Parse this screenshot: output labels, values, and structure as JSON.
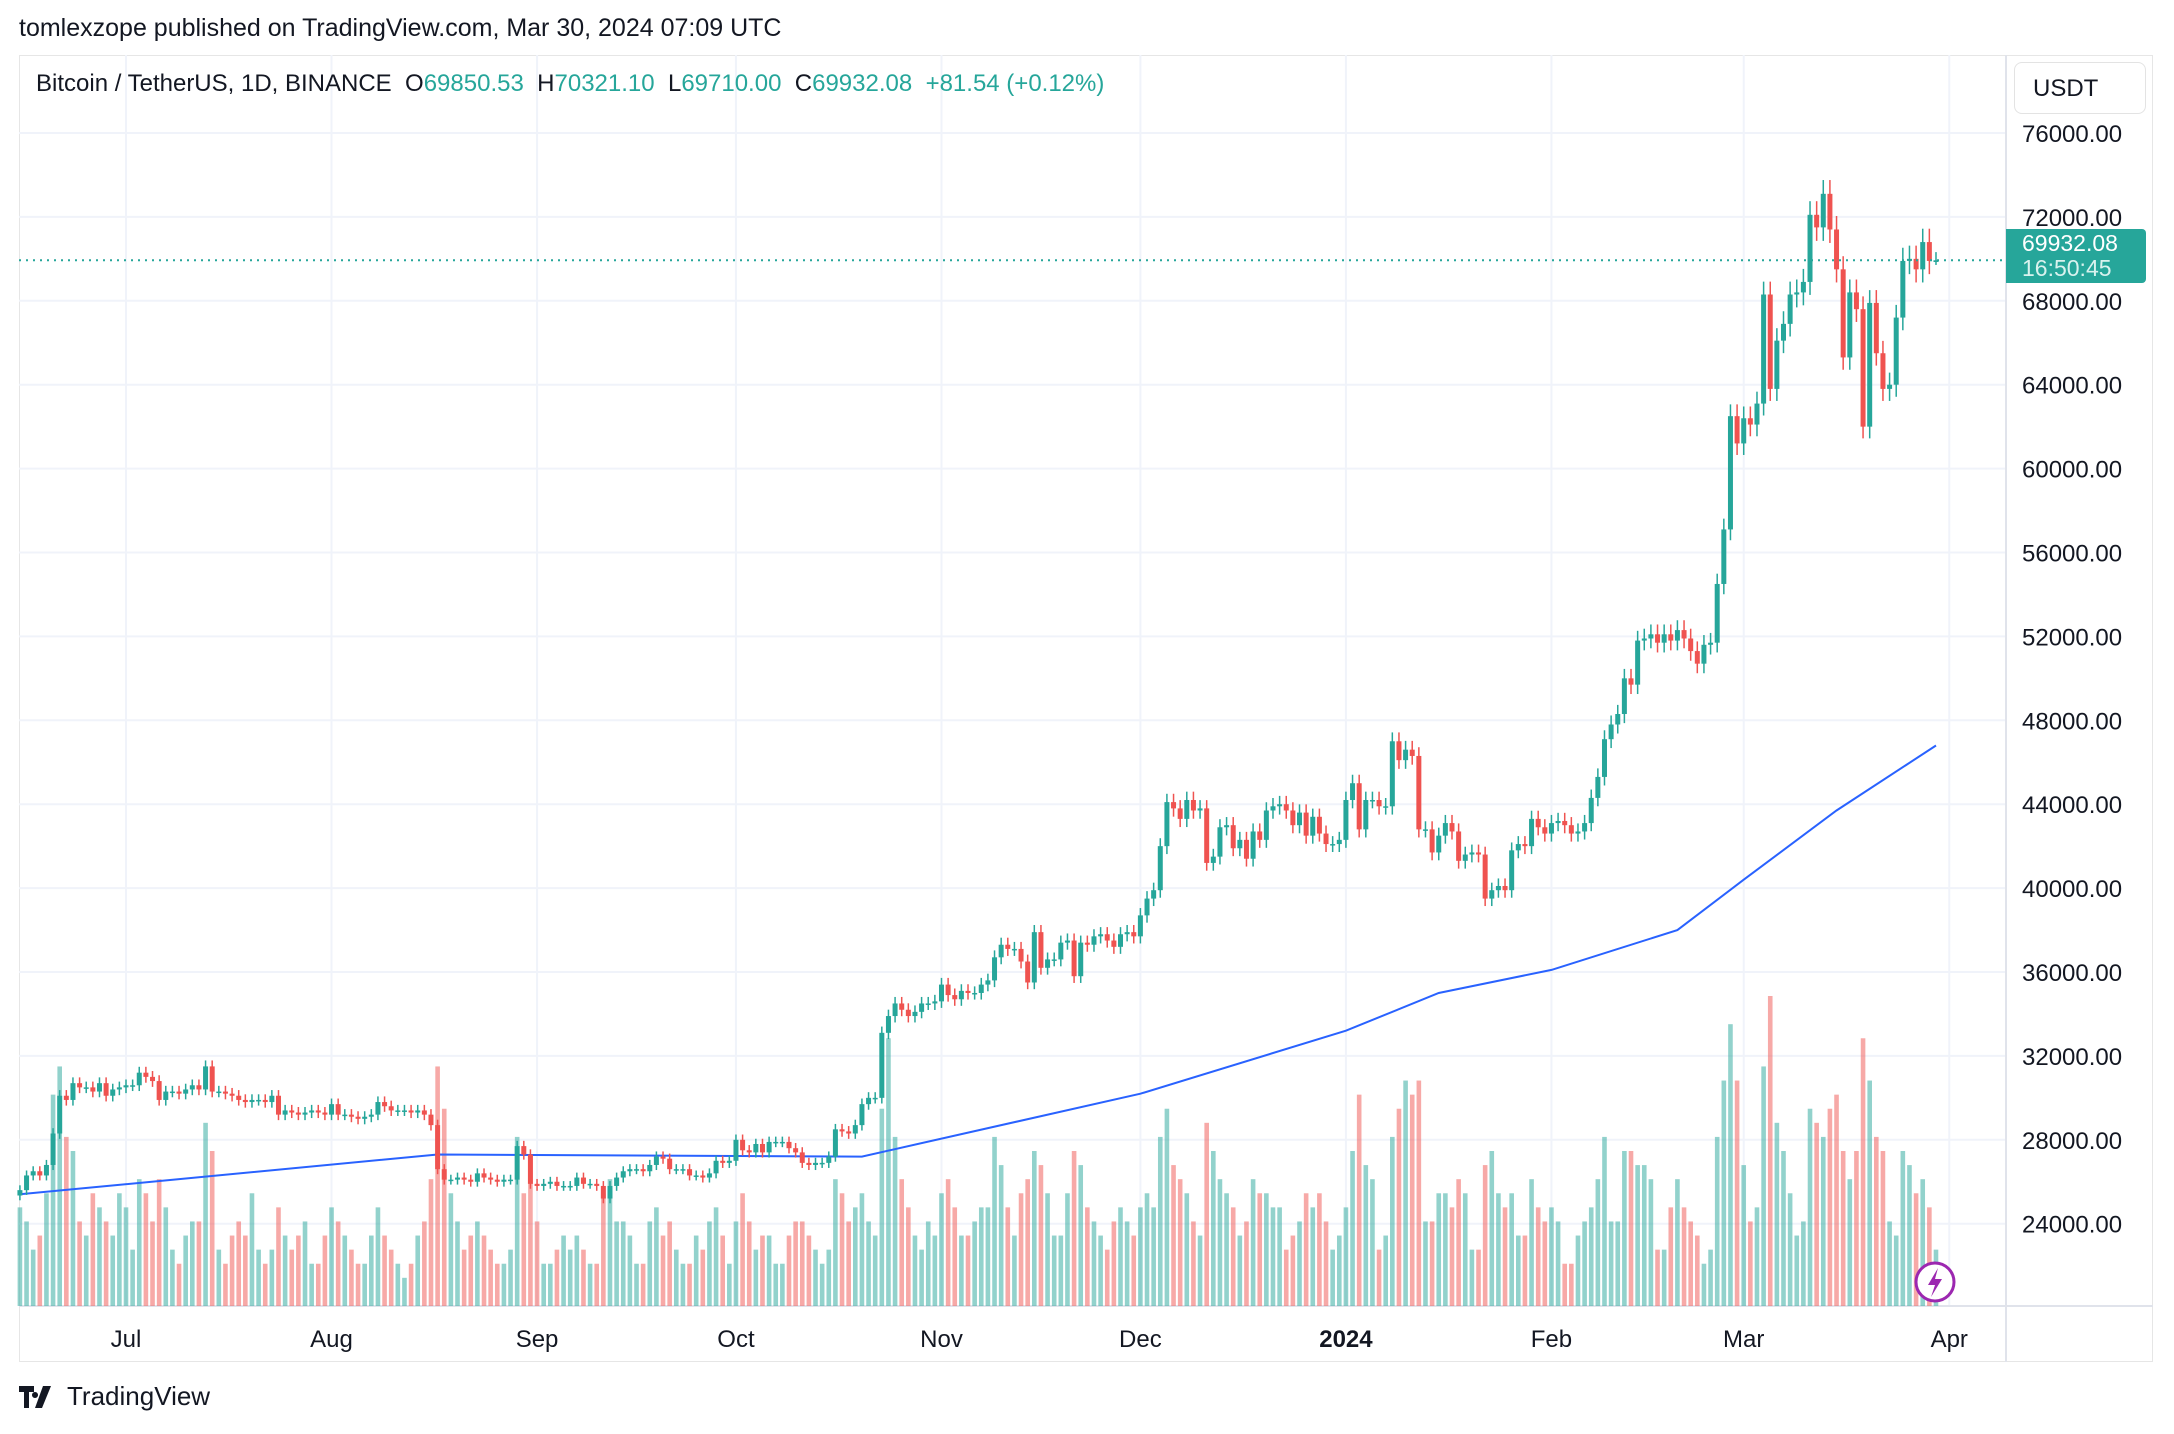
{
  "published": "tomlexzope published on TradingView.com, Mar 30, 2024 07:09 UTC",
  "legend": {
    "symbol": "Bitcoin / TetherUS, 1D, BINANCE",
    "o_label": "O",
    "open": "69850.53",
    "h_label": "H",
    "high": "70321.10",
    "l_label": "L",
    "low": "69710.00",
    "c_label": "C",
    "close": "69932.08",
    "change": "+81.54 (+0.12%)"
  },
  "currency_button": "USDT",
  "last_price": {
    "price": "69932.08",
    "countdown": "16:50:45"
  },
  "footer_brand": "TradingView",
  "colors": {
    "up": "#26a69a",
    "down": "#ef5350",
    "ma": "#2962ff",
    "grid": "#f0f3fa",
    "alert": "#9c27b0"
  },
  "chart_data": {
    "type": "candlestick",
    "title": "",
    "y_ticks": [
      "76000.00",
      "72000.00",
      "68000.00",
      "64000.00",
      "60000.00",
      "56000.00",
      "52000.00",
      "48000.00",
      "44000.00",
      "40000.00",
      "36000.00",
      "32000.00",
      "28000.00",
      "24000.00"
    ],
    "ylim": [
      20000,
      78000
    ],
    "x_ticks": [
      {
        "label": "Jul",
        "date": "2023-07-01",
        "bold": false
      },
      {
        "label": "Aug",
        "date": "2023-08-01",
        "bold": false
      },
      {
        "label": "Sep",
        "date": "2023-09-01",
        "bold": false
      },
      {
        "label": "Oct",
        "date": "2023-10-01",
        "bold": false
      },
      {
        "label": "Nov",
        "date": "2023-11-01",
        "bold": false
      },
      {
        "label": "Dec",
        "date": "2023-12-01",
        "bold": false
      },
      {
        "label": "2024",
        "date": "2024-01-01",
        "bold": true
      },
      {
        "label": "Feb",
        "date": "2024-02-01",
        "bold": false
      },
      {
        "label": "Mar",
        "date": "2024-03-01",
        "bold": false
      },
      {
        "label": "Apr",
        "date": "2024-04-01",
        "bold": false
      }
    ],
    "grid": true,
    "last_candle": {
      "open": 69850.53,
      "high": 70321.1,
      "low": 69710.0,
      "close": 69932.08
    },
    "daily_close_thousands": [
      {
        "month": "2023-06",
        "first_day": 15,
        "close": [
          25.6,
          26.3,
          26.5,
          26.3,
          26.8,
          28.3,
          30.1,
          29.9,
          30.7,
          30.5,
          30.5,
          30.3,
          30.7,
          30.1,
          30.4,
          30.5
        ],
        "volume": [
          35,
          30,
          20,
          25,
          40,
          75,
          85,
          60,
          55,
          30,
          25,
          40,
          35,
          30,
          25,
          40
        ]
      },
      {
        "month": "2023-07",
        "first_day": 1,
        "close": [
          30.6,
          30.6,
          31.2,
          31.0,
          30.8,
          29.9,
          30.3,
          30.3,
          30.2,
          30.4,
          30.6,
          30.4,
          31.5,
          30.3,
          30.3,
          30.2,
          30.1,
          29.9,
          29.8,
          29.9,
          29.9,
          29.8,
          30.1,
          29.2,
          29.4,
          29.3,
          29.2,
          29.3,
          29.4,
          29.3,
          29.2
        ],
        "volume": [
          35,
          20,
          45,
          40,
          30,
          45,
          35,
          20,
          15,
          25,
          30,
          30,
          65,
          55,
          20,
          15,
          25,
          30,
          25,
          40,
          20,
          15,
          20,
          35,
          25,
          20,
          25,
          30,
          15,
          15,
          25
        ]
      },
      {
        "month": "2023-08",
        "first_day": 1,
        "close": [
          29.7,
          29.2,
          29.2,
          29.1,
          29.0,
          29.1,
          29.2,
          29.8,
          29.6,
          29.4,
          29.4,
          29.4,
          29.3,
          29.4,
          29.2,
          28.7,
          26.6,
          26.1,
          26.1,
          26.2,
          26.1,
          26.0,
          26.4,
          26.2,
          26.1,
          26.0,
          26.1,
          26.1,
          27.7,
          27.3,
          25.9
        ],
        "volume": [
          35,
          30,
          25,
          20,
          15,
          15,
          25,
          35,
          25,
          20,
          15,
          10,
          15,
          25,
          30,
          45,
          85,
          70,
          40,
          30,
          20,
          25,
          30,
          25,
          20,
          15,
          15,
          20,
          60,
          40,
          45
        ]
      },
      {
        "month": "2023-09",
        "first_day": 1,
        "close": [
          25.8,
          25.9,
          26.0,
          25.8,
          25.8,
          25.8,
          26.2,
          25.9,
          25.9,
          25.8,
          25.2,
          25.8,
          26.2,
          26.5,
          26.6,
          26.6,
          26.5,
          26.8,
          27.2,
          27.1,
          26.6,
          26.6,
          26.6,
          26.3,
          26.3,
          26.2,
          26.4,
          27.0,
          26.9,
          27.0
        ],
        "volume": [
          30,
          15,
          15,
          20,
          25,
          20,
          25,
          20,
          15,
          15,
          40,
          45,
          30,
          30,
          25,
          15,
          15,
          30,
          35,
          25,
          30,
          20,
          15,
          15,
          25,
          20,
          30,
          35,
          25,
          15
        ]
      },
      {
        "month": "2023-10",
        "first_day": 1,
        "close": [
          28.0,
          27.5,
          27.4,
          27.8,
          27.4,
          27.9,
          27.9,
          27.9,
          27.6,
          27.4,
          26.9,
          26.8,
          26.9,
          26.9,
          27.2,
          28.5,
          28.4,
          28.3,
          28.7,
          29.7,
          30.0,
          30.0,
          33.1,
          33.9,
          34.5,
          34.2,
          33.9,
          34.1,
          34.5,
          34.5,
          34.6
        ],
        "volume": [
          30,
          40,
          30,
          20,
          25,
          25,
          15,
          15,
          25,
          30,
          30,
          25,
          20,
          15,
          20,
          45,
          40,
          30,
          35,
          40,
          30,
          25,
          70,
          95,
          60,
          45,
          35,
          25,
          20,
          30,
          25
        ]
      },
      {
        "month": "2023-11",
        "first_day": 1,
        "close": [
          35.4,
          34.9,
          34.7,
          35.1,
          35.0,
          35.0,
          35.4,
          35.6,
          36.7,
          37.3,
          37.1,
          37.1,
          36.5,
          35.5,
          37.9,
          36.2,
          36.6,
          36.6,
          37.4,
          37.5,
          35.8,
          37.4,
          37.3,
          37.7,
          37.8,
          37.5,
          37.2,
          37.8,
          37.9,
          37.7
        ],
        "volume": [
          40,
          45,
          35,
          25,
          25,
          30,
          35,
          35,
          60,
          50,
          35,
          25,
          40,
          45,
          55,
          50,
          40,
          25,
          25,
          40,
          55,
          50,
          35,
          30,
          25,
          20,
          30,
          35,
          30,
          25
        ]
      },
      {
        "month": "2023-12",
        "first_day": 1,
        "close": [
          38.7,
          39.5,
          39.9,
          42.0,
          44.1,
          43.8,
          43.3,
          44.2,
          43.7,
          43.8,
          41.2,
          41.5,
          42.9,
          43.0,
          41.9,
          42.3,
          41.4,
          42.7,
          42.3,
          43.7,
          43.9,
          44.0,
          43.7,
          43.0,
          43.6,
          42.5,
          43.4,
          42.6,
          42.1,
          42.1,
          42.3
        ],
        "volume": [
          35,
          40,
          35,
          60,
          70,
          50,
          45,
          40,
          30,
          25,
          65,
          55,
          45,
          40,
          35,
          25,
          30,
          45,
          40,
          40,
          35,
          35,
          20,
          25,
          30,
          40,
          35,
          40,
          30,
          20,
          25
        ]
      },
      {
        "month": "2024-01",
        "first_day": 1,
        "close": [
          44.2,
          45.0,
          42.8,
          44.2,
          44.2,
          43.9,
          43.9,
          47.0,
          46.1,
          46.6,
          46.3,
          42.8,
          42.8,
          41.7,
          42.5,
          43.1,
          42.7,
          41.3,
          41.6,
          41.7,
          41.6,
          39.5,
          39.9,
          40.1,
          39.9,
          41.8,
          42.1,
          42.0,
          43.3,
          42.9,
          42.6
        ],
        "volume": [
          35,
          55,
          75,
          50,
          45,
          20,
          25,
          60,
          70,
          80,
          75,
          80,
          30,
          30,
          40,
          40,
          35,
          45,
          40,
          20,
          20,
          50,
          55,
          40,
          35,
          40,
          25,
          25,
          45,
          35,
          30
        ]
      },
      {
        "month": "2024-02",
        "first_day": 1,
        "close": [
          43.1,
          43.2,
          43.0,
          42.6,
          42.7,
          43.1,
          44.3,
          45.3,
          47.1,
          47.8,
          48.3,
          50.0,
          49.7,
          51.8,
          51.9,
          52.1,
          51.7,
          52.1,
          51.8,
          52.3,
          51.9,
          51.3,
          50.7,
          51.6,
          51.7,
          54.5,
          57.1,
          62.5,
          61.2
        ],
        "volume": [
          35,
          30,
          15,
          15,
          25,
          30,
          35,
          45,
          60,
          30,
          30,
          55,
          55,
          50,
          50,
          45,
          20,
          20,
          35,
          45,
          35,
          30,
          25,
          15,
          20,
          60,
          80,
          100,
          80
        ]
      },
      {
        "month": "2024-03",
        "first_day": 1,
        "close": [
          62.4,
          62.1,
          63.1,
          68.3,
          63.8,
          66.1,
          66.9,
          68.3,
          68.4,
          68.9,
          72.1,
          71.5,
          73.1,
          71.4,
          69.5,
          65.3,
          68.4,
          67.6,
          62.0,
          67.9,
          65.5,
          63.8,
          64.0,
          67.2,
          69.9,
          70.0,
          69.5,
          70.8,
          69.9,
          69.93
        ],
        "volume": [
          50,
          30,
          35,
          85,
          110,
          65,
          55,
          40,
          25,
          30,
          70,
          65,
          60,
          70,
          75,
          55,
          45,
          55,
          95,
          80,
          60,
          55,
          30,
          25,
          55,
          50,
          40,
          45,
          35,
          20
        ]
      }
    ],
    "moving_average": [
      {
        "date": "2023-06-15",
        "value": 25400
      },
      {
        "date": "2023-08-17",
        "value": 27300
      },
      {
        "date": "2023-10-20",
        "value": 27200
      },
      {
        "date": "2023-12-01",
        "value": 30200
      },
      {
        "date": "2024-01-01",
        "value": 33200
      },
      {
        "date": "2024-01-15",
        "value": 35000
      },
      {
        "date": "2024-02-01",
        "value": 36100
      },
      {
        "date": "2024-02-20",
        "value": 38000
      },
      {
        "date": "2024-03-01",
        "value": 40400
      },
      {
        "date": "2024-03-15",
        "value": 43700
      },
      {
        "date": "2024-03-30",
        "value": 46800
      }
    ]
  }
}
